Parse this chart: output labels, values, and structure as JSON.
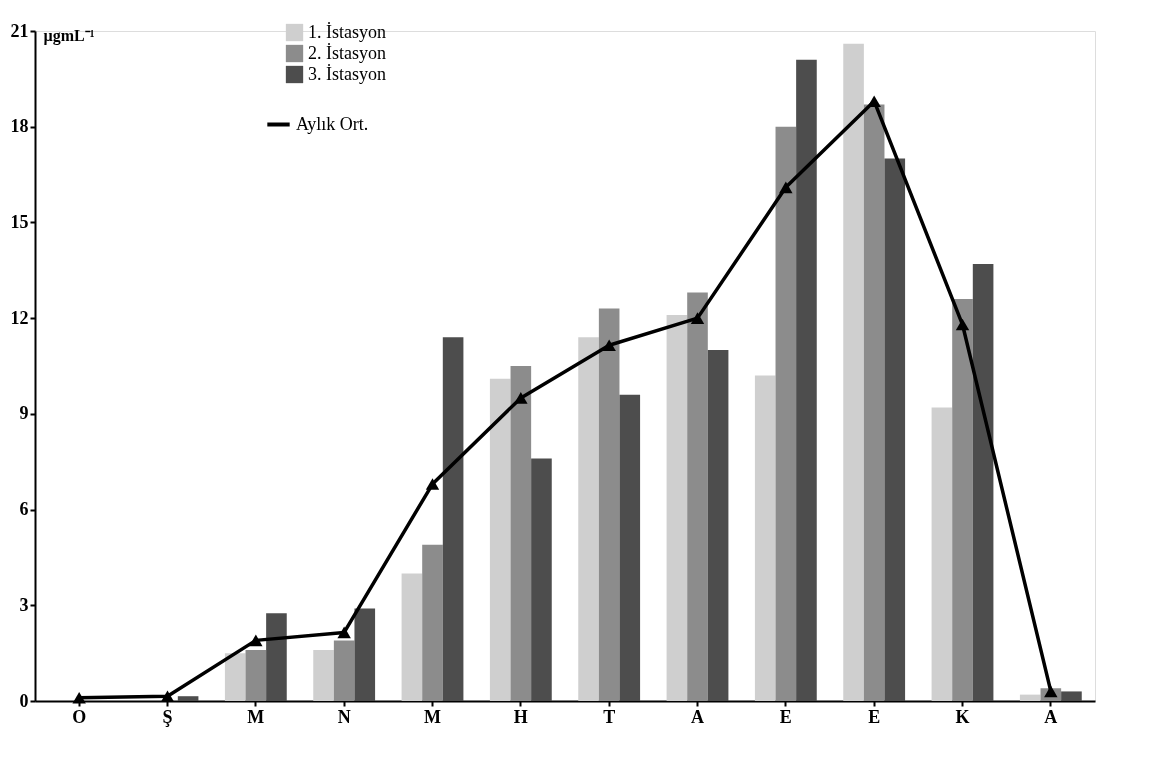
{
  "chart_data": {
    "type": "bar",
    "ylabel": "µgmL⁻¹",
    "categories": [
      "O",
      "Ş",
      "M",
      "N",
      "M",
      "H",
      "T",
      "A",
      "E",
      "E",
      "K",
      "A"
    ],
    "series": [
      {
        "name": "1. İstasyon",
        "color": "#cfcfcf",
        "values": [
          0,
          0,
          1.5,
          1.6,
          4.0,
          10.1,
          11.4,
          12.1,
          10.2,
          20.6,
          9.2,
          0.2
        ]
      },
      {
        "name": "2. İstasyon",
        "color": "#8c8c8c",
        "values": [
          0,
          0,
          1.6,
          1.9,
          4.9,
          10.5,
          12.3,
          12.8,
          18.0,
          18.7,
          12.6,
          0.4
        ]
      },
      {
        "name": "3. İstasyon",
        "color": "#4d4d4d",
        "values": [
          0,
          0.15,
          2.75,
          2.9,
          11.4,
          7.6,
          9.6,
          11.0,
          20.1,
          17.0,
          13.7,
          0.3
        ]
      },
      {
        "name": "Aylık Ort.",
        "type": "line",
        "color": "#000000",
        "marker": "triangle",
        "values": [
          0.1,
          0.15,
          1.9,
          2.15,
          6.8,
          9.5,
          11.15,
          12.0,
          16.1,
          18.8,
          11.8,
          0.3
        ]
      }
    ],
    "ylim": [
      0,
      21
    ],
    "yticks": [
      0,
      3,
      6,
      9,
      12,
      15,
      18,
      21
    ],
    "grid": false,
    "legend": "top left"
  }
}
